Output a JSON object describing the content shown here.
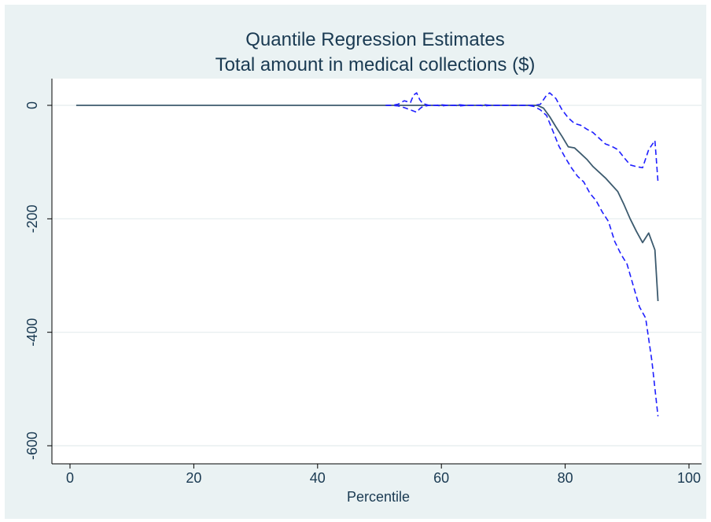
{
  "chart_data": {
    "type": "line",
    "title": "Quantile Regression Estimates",
    "subtitle": "Total amount in medical collections ($)",
    "xlabel": "Percentile",
    "ylabel": "",
    "xlim": [
      0,
      100
    ],
    "ylim": [
      -600,
      0
    ],
    "xticks": [
      0,
      20,
      40,
      60,
      80,
      100
    ],
    "yticks": [
      0,
      -200,
      -400,
      -600
    ],
    "grid": true,
    "legend": "none",
    "colors": {
      "background": "#eaf2f3",
      "plot_background": "#ffffff",
      "grid": "#e4ecee",
      "estimate_line": "#3c5a6e",
      "confidence_band": "#1f1fff",
      "text": "#1a3a52"
    },
    "series": [
      {
        "style": "solid",
        "x": [
          1,
          5,
          10,
          15,
          20,
          25,
          30,
          35,
          40,
          45,
          50,
          55,
          60,
          65,
          70,
          74,
          75.5,
          76.5,
          77.5,
          78.5,
          79.5,
          80.5,
          81.5,
          82.5,
          83.5,
          84.5,
          85.5,
          86.5,
          87.5,
          88.5,
          89.5,
          90.5,
          91.5,
          92.5,
          93.5,
          94.5,
          95
        ],
        "y": [
          0,
          0,
          0,
          0,
          0,
          0,
          0,
          0,
          0,
          0,
          0,
          0,
          0,
          0,
          0,
          0,
          0,
          -5,
          -20,
          -38,
          -55,
          -73,
          -75,
          -85,
          -95,
          -108,
          -118,
          -128,
          -140,
          -152,
          -175,
          -200,
          -222,
          -242,
          -225,
          -255,
          -345
        ]
      },
      {
        "style": "dashed",
        "x": [
          51,
          52,
          53,
          54,
          55,
          55.5,
          56,
          56.5,
          57,
          58,
          59,
          60,
          61,
          62,
          63,
          64,
          65,
          66,
          67,
          68,
          69,
          70,
          71,
          72,
          73,
          74,
          75,
          76,
          77,
          77.5,
          78.5,
          79.5,
          80.5,
          81.5,
          82.5,
          83.5,
          84.5,
          85.5,
          86.5,
          87.5,
          88.5,
          89.5,
          90.5,
          91.5,
          92.5,
          93.5,
          94.5,
          95
        ],
        "y": [
          0,
          0,
          2,
          8,
          5,
          18,
          22,
          10,
          3,
          0,
          0,
          1,
          0,
          0,
          1,
          0,
          0,
          0,
          1,
          0,
          0,
          0,
          0,
          0,
          0,
          0,
          0,
          2,
          18,
          22,
          12,
          -8,
          -22,
          -32,
          -35,
          -42,
          -48,
          -58,
          -68,
          -72,
          -78,
          -92,
          -105,
          -108,
          -110,
          -78,
          -62,
          -135
        ]
      },
      {
        "style": "dashed",
        "x": [
          51,
          52,
          53,
          54,
          55,
          55.5,
          56,
          56.5,
          57,
          58,
          59,
          60,
          61,
          62,
          63,
          64,
          65,
          66,
          67,
          68,
          69,
          70,
          71,
          72,
          73,
          74,
          75,
          76,
          77,
          78,
          79,
          80,
          81,
          82,
          83,
          84,
          85,
          86,
          87,
          88,
          89,
          90,
          91,
          92,
          93,
          94,
          95
        ],
        "y": [
          0,
          0,
          -1,
          -4,
          -8,
          -10,
          -12,
          -6,
          -2,
          0,
          0,
          -1,
          0,
          0,
          -1,
          0,
          0,
          0,
          -1,
          0,
          0,
          0,
          0,
          0,
          0,
          0,
          -2,
          -8,
          -18,
          -45,
          -72,
          -92,
          -110,
          -125,
          -135,
          -155,
          -168,
          -188,
          -205,
          -240,
          -262,
          -280,
          -318,
          -355,
          -375,
          -450,
          -548
        ]
      }
    ]
  }
}
